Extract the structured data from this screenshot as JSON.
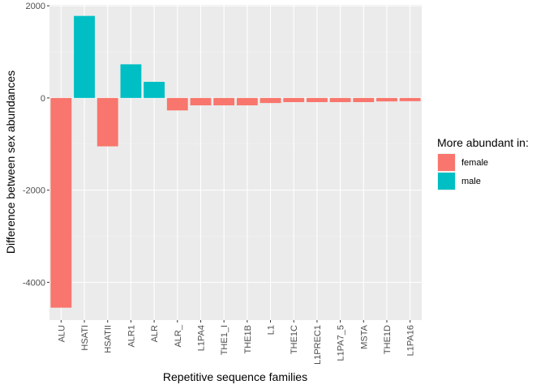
{
  "chart_data": {
    "type": "bar",
    "categories": [
      "ALU",
      "HSATI",
      "HSATII",
      "ALR1",
      "ALR",
      "ALR_",
      "L1PA4",
      "THE1_I",
      "THE1B",
      "L1",
      "THE1C",
      "L1PREC1",
      "L1PA7_5",
      "MSTA",
      "THE1D",
      "L1PA16"
    ],
    "values": [
      -4550,
      1780,
      -1050,
      730,
      350,
      -270,
      -160,
      -160,
      -160,
      -110,
      -90,
      -90,
      -90,
      -90,
      -75,
      -70
    ],
    "groups": [
      "female",
      "male",
      "female",
      "male",
      "male",
      "female",
      "female",
      "female",
      "female",
      "female",
      "female",
      "female",
      "female",
      "female",
      "female",
      "female"
    ],
    "xlabel": "Repetitive sequence families",
    "ylabel": "Difference between sex abundances",
    "ylim": [
      -4820,
      2020
    ],
    "yticks": [
      -4000,
      -2000,
      0,
      2000
    ],
    "ytick_labels": [
      "-4000",
      "-2000",
      "0",
      "2000"
    ],
    "grid": true,
    "legend": {
      "title": "More abundant in:",
      "placement": "right",
      "entries": [
        {
          "key": "female",
          "label": "female",
          "color": "#F8766D"
        },
        {
          "key": "male",
          "label": "male",
          "color": "#00BFC4"
        }
      ]
    },
    "colors": {
      "panel_background": "#EBEBEB",
      "grid_major": "#FFFFFF",
      "grid_minor": "#F5F5F5"
    }
  }
}
